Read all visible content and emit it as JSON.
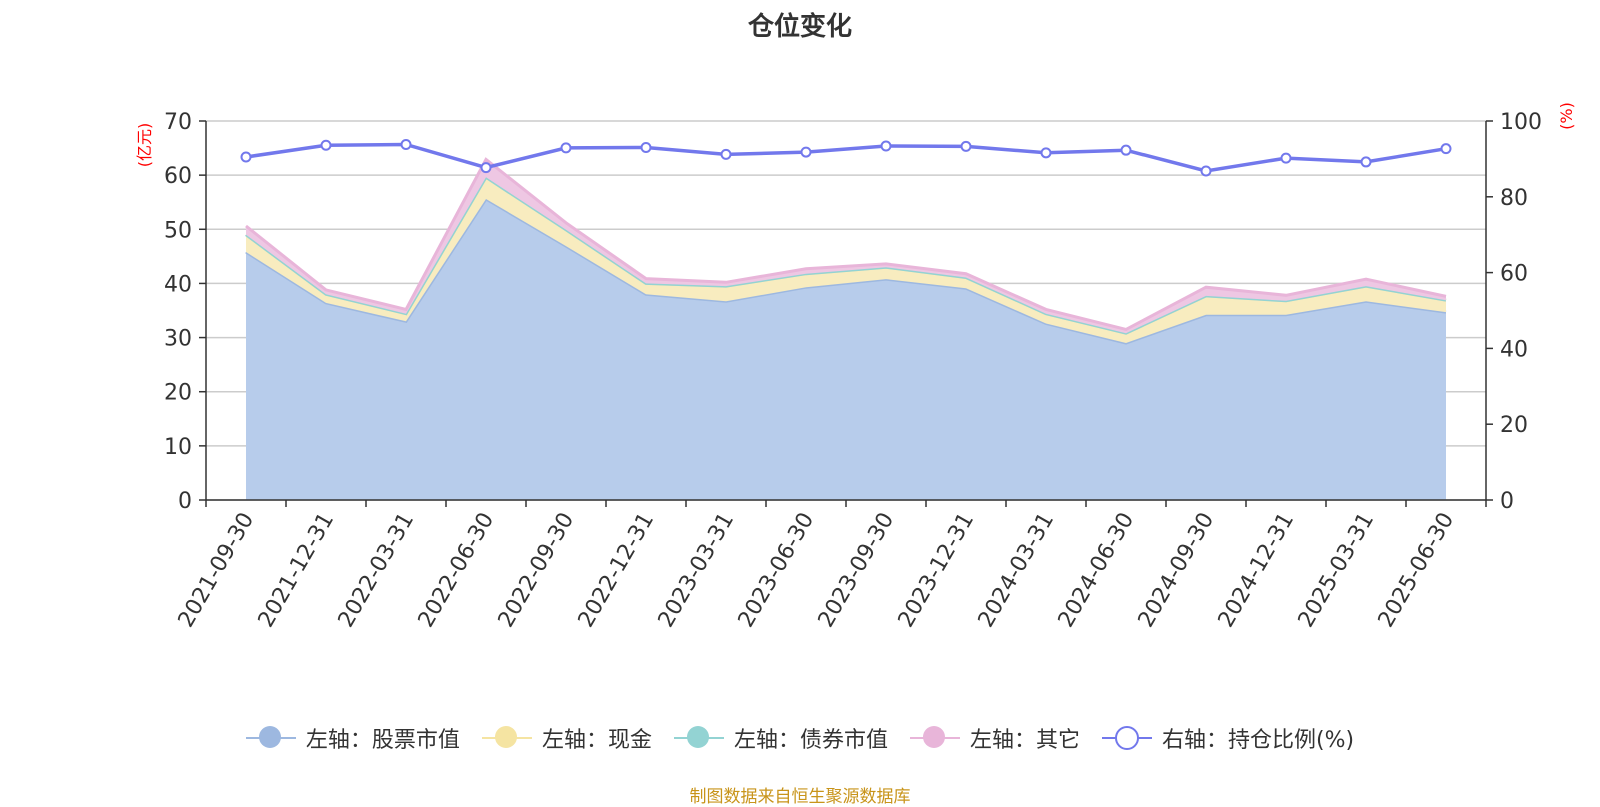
{
  "title": "仓位变化",
  "footer": "制图数据来自恒生聚源数据库",
  "chart_data": {
    "type": "area",
    "title": "仓位变化",
    "categories": [
      "2021-09-30",
      "2021-12-31",
      "2022-03-31",
      "2022-06-30",
      "2022-09-30",
      "2022-12-31",
      "2023-03-31",
      "2023-06-30",
      "2023-09-30",
      "2023-12-31",
      "2024-03-31",
      "2024-06-30",
      "2024-09-30",
      "2024-12-31",
      "2025-03-31",
      "2025-06-30"
    ],
    "left_axis": {
      "unit": "(亿元)",
      "range": [
        0,
        70
      ],
      "ticks": [
        0,
        10,
        20,
        30,
        40,
        50,
        60,
        70
      ]
    },
    "right_axis": {
      "unit": "(%)",
      "range": [
        0,
        100
      ],
      "ticks": [
        0,
        20,
        40,
        60,
        80,
        100
      ]
    },
    "stacked": true,
    "grid": true,
    "legend_position": "bottom",
    "series": [
      {
        "name": "左轴：股票市值",
        "axis": "left",
        "kind": "area",
        "color": "#9db8e0",
        "fill": "#b7cceb",
        "values": [
          45.8,
          36.4,
          33.0,
          55.6,
          46.9,
          38.0,
          36.7,
          39.3,
          40.8,
          39.1,
          32.6,
          29.0,
          34.2,
          34.2,
          36.7,
          34.7
        ]
      },
      {
        "name": "左轴：现金",
        "axis": "left",
        "kind": "area",
        "color": "#f5e4a2",
        "fill": "#f8ecbf",
        "values": [
          3.2,
          1.6,
          1.4,
          4.0,
          3.0,
          2.0,
          2.8,
          2.5,
          2.2,
          2.0,
          1.8,
          1.8,
          3.5,
          2.6,
          2.8,
          2.2
        ]
      },
      {
        "name": "左轴：债券市值",
        "axis": "left",
        "kind": "area",
        "color": "#93d3d3",
        "fill": "#b3e1e1",
        "values": [
          0,
          0,
          0,
          0,
          0,
          0,
          0,
          0,
          0,
          0,
          0,
          0,
          0,
          0,
          0,
          0
        ]
      },
      {
        "name": "左轴：其它",
        "axis": "left",
        "kind": "area",
        "color": "#e8b5d9",
        "fill": "#eec7e3",
        "values": [
          1.6,
          0.8,
          0.8,
          3.3,
          1.3,
          0.9,
          0.7,
          0.9,
          0.6,
          0.7,
          0.8,
          0.7,
          1.6,
          1.0,
          1.3,
          0.7
        ]
      },
      {
        "name": "右轴：持仓比例(%)",
        "axis": "right",
        "kind": "line",
        "color": "#7278ec",
        "values": [
          90.5,
          93.6,
          93.8,
          87.7,
          92.9,
          93.0,
          91.2,
          91.8,
          93.4,
          93.3,
          91.6,
          92.3,
          86.8,
          90.2,
          89.2,
          92.7
        ]
      }
    ]
  }
}
